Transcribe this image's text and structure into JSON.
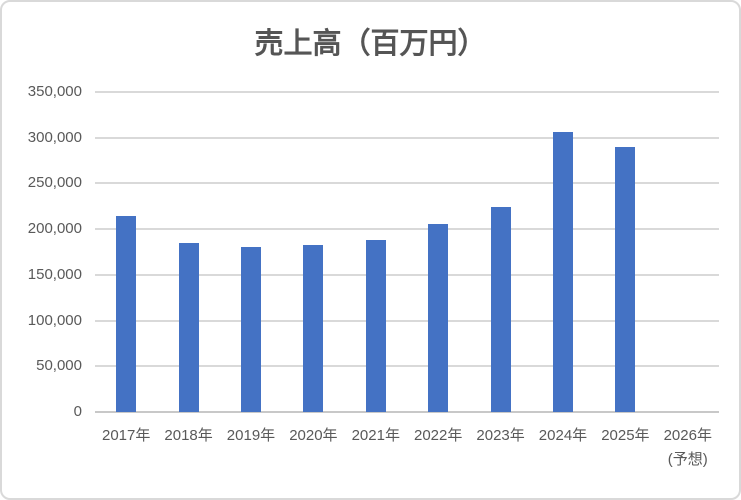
{
  "chart": {
    "background_color": "#ffffff",
    "border_color": "#d9d9d9"
  },
  "chart_data": {
    "type": "bar",
    "title": "売上高（百万円）",
    "categories": [
      "2017年",
      "2018年",
      "2019年",
      "2020年",
      "2021年",
      "2022年",
      "2023年",
      "2024年",
      "2025年",
      "2026年"
    ],
    "category_notes": [
      "",
      "",
      "",
      "",
      "",
      "",
      "",
      "",
      "",
      "(予想)"
    ],
    "values": [
      214000,
      185000,
      180000,
      183000,
      188000,
      206000,
      224000,
      306000,
      290000,
      null
    ],
    "xlabel": "",
    "ylabel": "",
    "ylim": [
      0,
      350000
    ],
    "ytick_step": 50000,
    "ytick_labels": [
      "0",
      "50,000",
      "100,000",
      "150,000",
      "200,000",
      "250,000",
      "300,000",
      "350,000"
    ],
    "grid": "horizontal-on",
    "legend": "none",
    "bar_color": "#4472c4",
    "gridline_color": "#d9d9d9",
    "axis_line_color": "#c8c8c8",
    "label_color": "#595959",
    "title_color": "#555555"
  }
}
